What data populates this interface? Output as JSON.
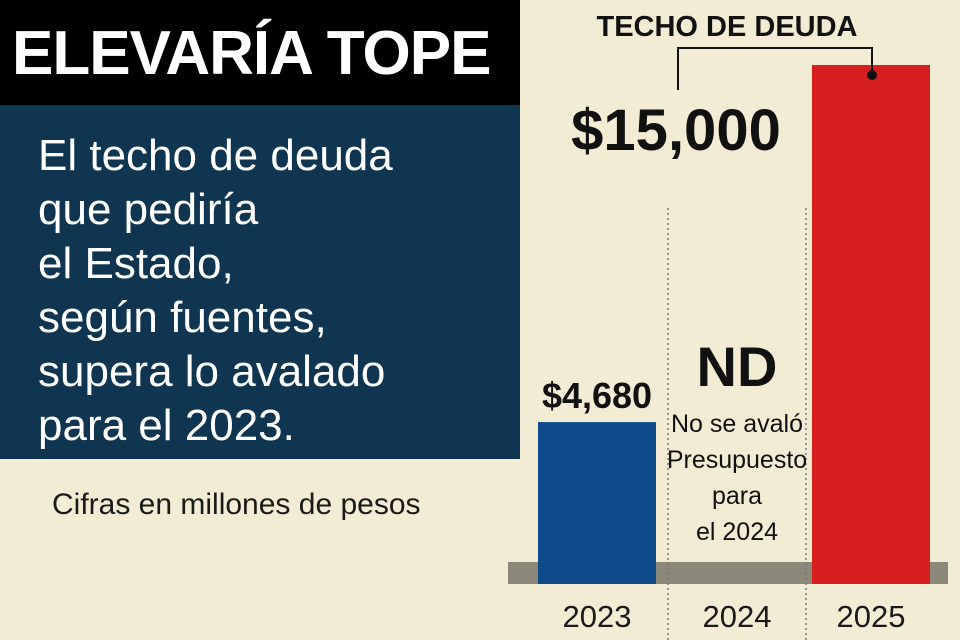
{
  "title": "ELEVARÍA TOPE",
  "description": [
    "El techo de deuda",
    "que pediría",
    "el Estado,",
    "según fuentes,",
    "supera lo avalado",
    "para el 2023."
  ],
  "note": "Cifras en millones de pesos",
  "chart_data": {
    "type": "bar",
    "categories": [
      "2023",
      "2024",
      "2025"
    ],
    "values": [
      4680,
      null,
      15000
    ],
    "value_labels": [
      "$4,680",
      "ND",
      "$15,000"
    ],
    "colors": [
      "#0e4a8a",
      null,
      "#d71f1f"
    ],
    "na_note": [
      "No se avaló",
      "Presupuesto",
      "para",
      "el 2024"
    ],
    "annotation": "TECHO DE DEUDA",
    "grid": false,
    "legend": "none"
  }
}
